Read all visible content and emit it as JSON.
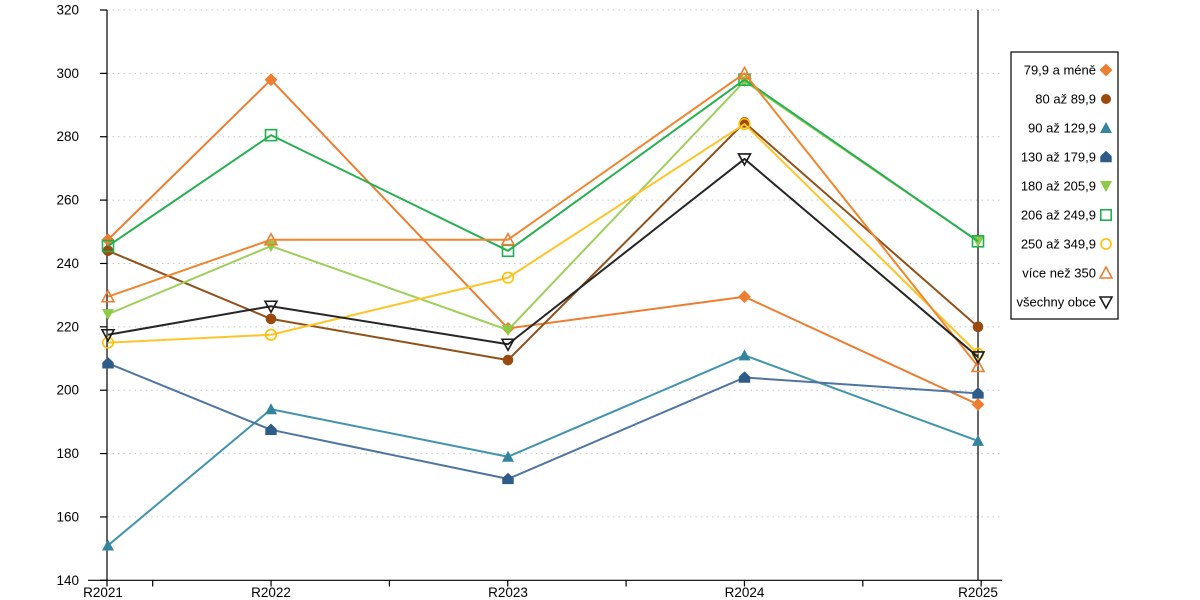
{
  "chart_data": {
    "type": "line",
    "title": "",
    "xlabel": "",
    "ylabel": "",
    "categories": [
      "R2021",
      "R2022",
      "R2023",
      "R2024",
      "R2025"
    ],
    "ylim": [
      140,
      320
    ],
    "ytick_step": 20,
    "grid": "horizontal-dashed",
    "legend_position": "right",
    "axis_color": "#000000",
    "grid_color": "#C6C6C6",
    "series": [
      {
        "name": "79,9 a méně",
        "marker": "diamond",
        "filled": true,
        "color": "#ED7D31",
        "line_color": "#ED7D31",
        "values": [
          247.5,
          298,
          219.5,
          229.5,
          195.5
        ]
      },
      {
        "name": "80 až 89,9",
        "marker": "circle",
        "filled": true,
        "color": "#9A4A0F",
        "line_color": "#91511A",
        "values": [
          244,
          222.5,
          209.5,
          284.5,
          220
        ]
      },
      {
        "name": "90 až 129,9",
        "marker": "triangle-up",
        "filled": true,
        "color": "#35849E",
        "line_color": "#4293AE",
        "values": [
          151,
          194,
          179,
          211,
          184
        ]
      },
      {
        "name": "130 až 179,9",
        "marker": "pentagon",
        "filled": true,
        "color": "#2D5C88",
        "line_color": "#4F74A2",
        "values": [
          208.5,
          187.5,
          172,
          204,
          199
        ]
      },
      {
        "name": "180 až 205,9",
        "marker": "triangle-down",
        "filled": true,
        "color": "#8CCB44",
        "line_color": "#9ED05C",
        "values": [
          224,
          245.5,
          219,
          297.5,
          247
        ]
      },
      {
        "name": "206 až 249,9",
        "marker": "square",
        "filled": false,
        "color": "#1FAF50",
        "line_color": "#27B052",
        "values": [
          245.5,
          280.5,
          244,
          298,
          247
        ]
      },
      {
        "name": "250 až 349,9",
        "marker": "circle",
        "filled": false,
        "color": "#FFC000",
        "line_color": "#FFC42C",
        "values": [
          215,
          217.5,
          235.5,
          284,
          211.5
        ]
      },
      {
        "name": "více než 350",
        "marker": "triangle-up",
        "filled": false,
        "color": "#ED7D31",
        "line_color": "#F0862E",
        "values": [
          229.5,
          247.5,
          247.5,
          300,
          207.5
        ]
      },
      {
        "name": "všechny obce",
        "marker": "triangle-down",
        "filled": false,
        "color": "#1A1A1A",
        "line_color": "#262626",
        "values": [
          217.5,
          226.5,
          214.5,
          273,
          210.5
        ]
      }
    ]
  }
}
